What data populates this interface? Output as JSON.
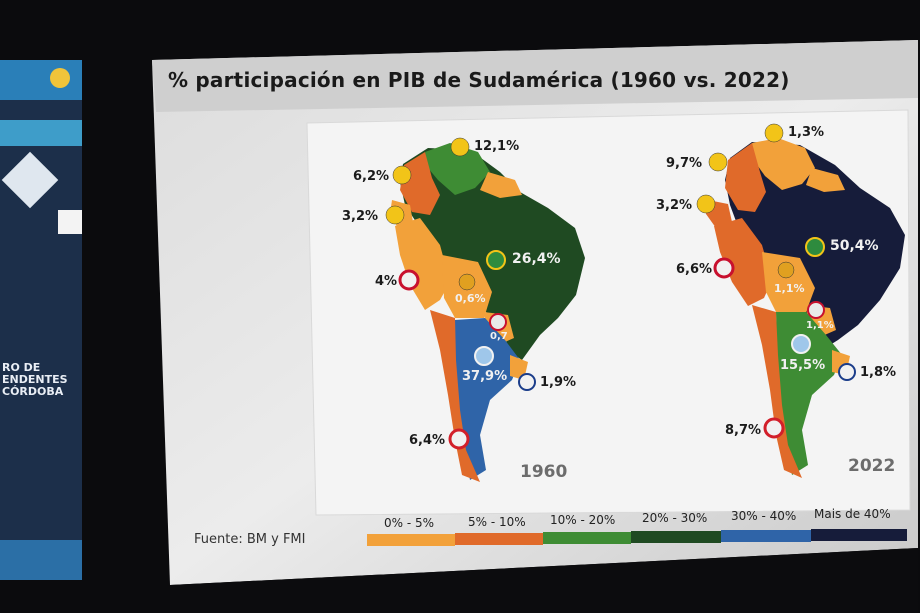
{
  "title": "% participación en PIB de Sudamérica (1960 vs. 2022)",
  "side_banner": {
    "lines": [
      "RO DE",
      "ENDENTES",
      "CÓRDOBA"
    ]
  },
  "source": "Fuente: BM y FMI",
  "legend": [
    {
      "label": "0% - 5%",
      "color": "#f2a13a"
    },
    {
      "label": "5% - 10%",
      "color": "#e06a2a"
    },
    {
      "label": "10% - 20%",
      "color": "#3e8c34"
    },
    {
      "label": "20% - 30%",
      "color": "#1f4a22"
    },
    {
      "label": "30% - 40%",
      "color": "#2f64a8"
    },
    {
      "label": "Mais de 40%",
      "color": "#161c3a"
    }
  ],
  "maps": [
    {
      "year": "1960",
      "labels": {
        "venezuela": "12,1%",
        "colombia": "6,2%",
        "ecuador": "3,2%",
        "peru": "4%",
        "bolivia": "0,6%",
        "brazil": "26,4%",
        "paraguay": "0,7",
        "argentina": "37,9%",
        "uruguay": "1,9%",
        "chile": "6,4%"
      }
    },
    {
      "year": "2022",
      "labels": {
        "venezuela": "1,3%",
        "colombia": "9,7%",
        "ecuador": "3,2%",
        "peru": "6,6%",
        "bolivia": "1,1%",
        "brazil": "50,4%",
        "paraguay": "1,1%",
        "argentina": "15,5%",
        "uruguay": "1,8%",
        "chile": "8,7%"
      }
    }
  ]
}
